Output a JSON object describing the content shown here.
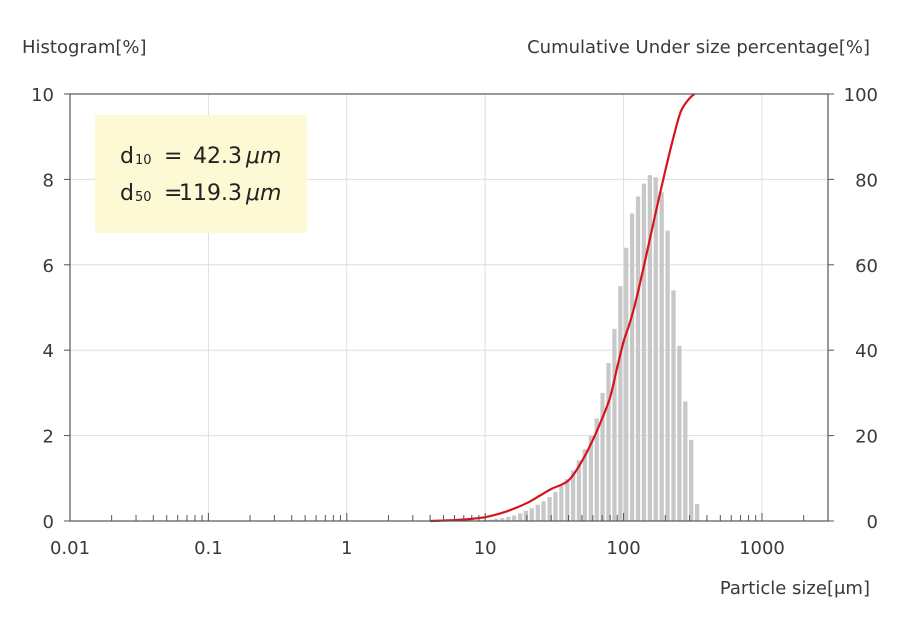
{
  "chart_data": {
    "type": "bar",
    "left_axis_title": "Histogram[%]",
    "right_axis_title": "Cumulative Under size percentage[%]",
    "x_axis_title": "Particle size[μm]",
    "x_scale": "log",
    "x_range": [
      0.01,
      3000
    ],
    "x_tick_values": [
      0.01,
      0.1,
      1,
      10,
      100,
      1000
    ],
    "x_tick_labels": [
      "0.01",
      "0.1",
      "1",
      "10",
      "100",
      "1000"
    ],
    "y_left_range": [
      0,
      10
    ],
    "y_left_tick_labels": [
      "0",
      "2",
      "4",
      "6",
      "8",
      "10"
    ],
    "y_right_range": [
      0,
      100
    ],
    "y_right_tick_labels": [
      "0",
      "20",
      "40",
      "60",
      "80",
      "100"
    ],
    "grid": true,
    "colors": {
      "bars": "#c8c8c8",
      "cumulative": "#d7141e",
      "grid": "#dedede",
      "annotation_box": "#fdf9d4"
    },
    "annotation": {
      "lines": [
        {
          "label": "d",
          "sub": "10",
          "eq": "=",
          "value": "42.3",
          "unit": "μm"
        },
        {
          "label": "d",
          "sub": "50",
          "eq": "=",
          "value": "119.3",
          "unit": "μm"
        }
      ]
    },
    "series": [
      {
        "type": "bar",
        "x": [
          10,
          11,
          12,
          13.3,
          14.7,
          16.2,
          17.9,
          19.7,
          21.7,
          24,
          26.4,
          29.2,
          32.2,
          35.5,
          39.2,
          43.2,
          47.6,
          52.5,
          58,
          64,
          70.5,
          77.8,
          85.9,
          94.8,
          104.5,
          115.3,
          127.2,
          140.3,
          154.9,
          170.9,
          188.5,
          208,
          229.5,
          253.2,
          279.3,
          308.2,
          340
        ],
        "values": [
          0.02,
          0.03,
          0.05,
          0.07,
          0.1,
          0.13,
          0.18,
          0.24,
          0.3,
          0.38,
          0.46,
          0.56,
          0.68,
          0.82,
          0.98,
          1.18,
          1.42,
          1.68,
          2.0,
          2.4,
          3.0,
          3.7,
          4.5,
          5.5,
          6.4,
          7.2,
          7.6,
          7.9,
          8.1,
          8.05,
          7.7,
          6.8,
          5.4,
          4.1,
          2.8,
          1.9,
          0.4
        ]
      },
      {
        "type": "line",
        "x": [
          4,
          5,
          6,
          7,
          8,
          10,
          12,
          15,
          20,
          25,
          30,
          40,
          50,
          60,
          70,
          80,
          90,
          100,
          110,
          119.3,
          130,
          150,
          170,
          200,
          230,
          260,
          300,
          325
        ],
        "values": [
          0,
          0.1,
          0.2,
          0.35,
          0.5,
          0.9,
          1.5,
          2.5,
          4.2,
          6,
          7.5,
          9.5,
          14,
          19,
          24,
          29,
          36,
          42,
          46,
          50,
          55,
          64,
          72,
          82,
          90,
          96,
          99,
          100
        ]
      }
    ]
  }
}
